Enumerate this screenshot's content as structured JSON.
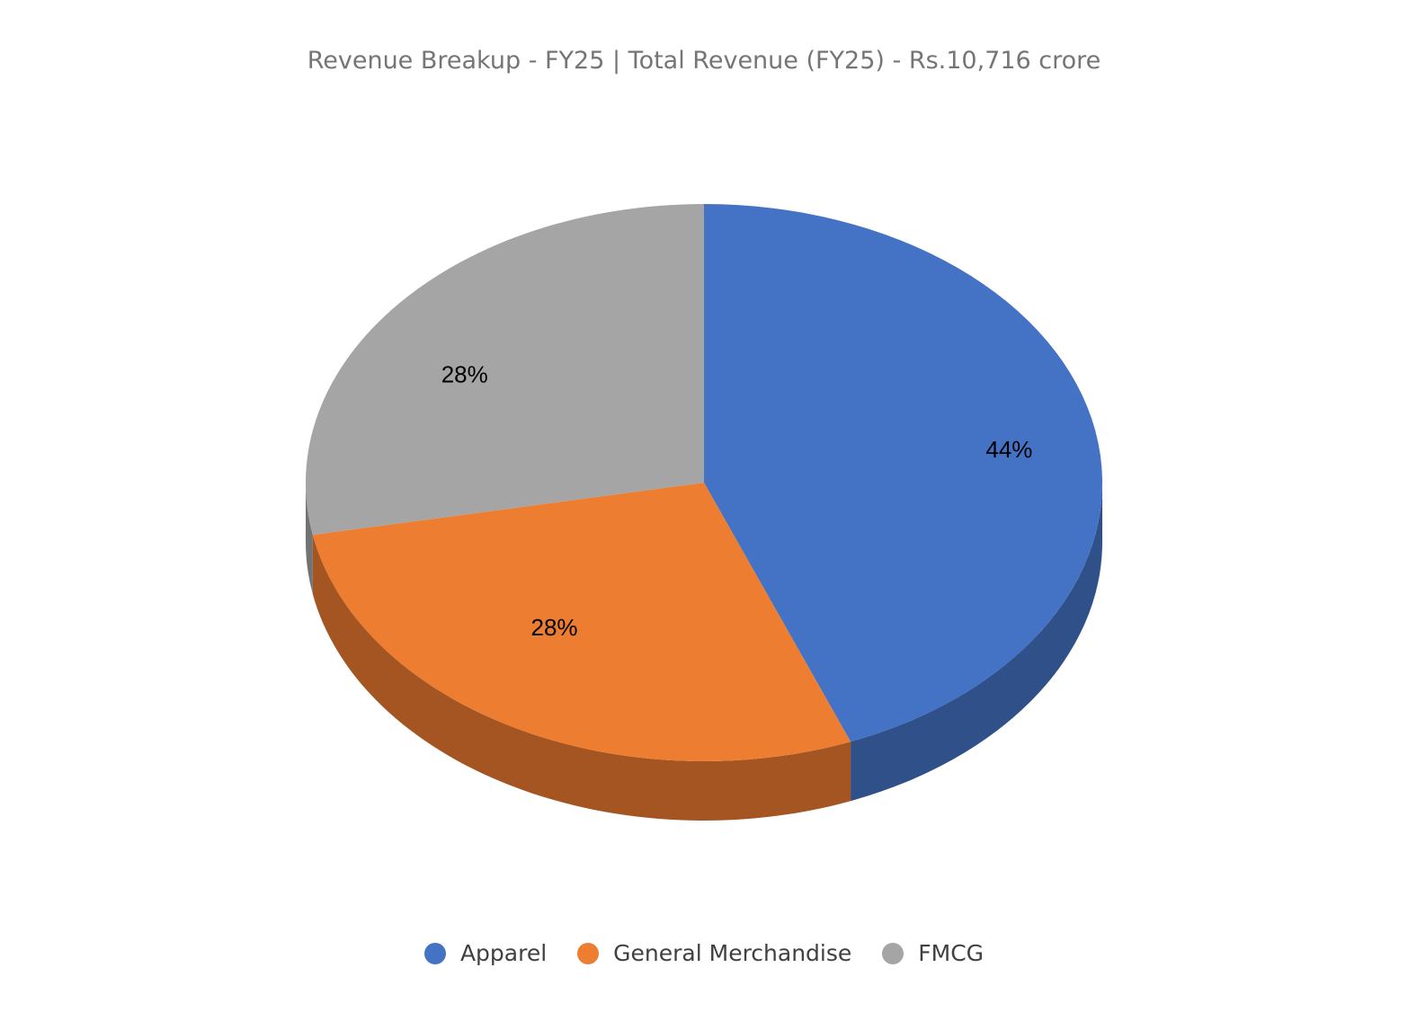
{
  "chart_data": {
    "type": "pie",
    "title": "Revenue Breakup - FY25 | Total Revenue (FY25) - Rs.10,716 crore",
    "legend_position": "bottom",
    "slices": [
      {
        "name": "Apparel",
        "value": 44,
        "label": "44%",
        "color": "#4472C4",
        "side_color": "#2F5089"
      },
      {
        "name": "General Merchandise",
        "value": 28,
        "label": "28%",
        "color": "#ED7D31",
        "side_color": "#A55522"
      },
      {
        "name": "FMCG",
        "value": 28,
        "label": "28%",
        "color": "#A5A5A5",
        "side_color": "#737373"
      }
    ]
  }
}
